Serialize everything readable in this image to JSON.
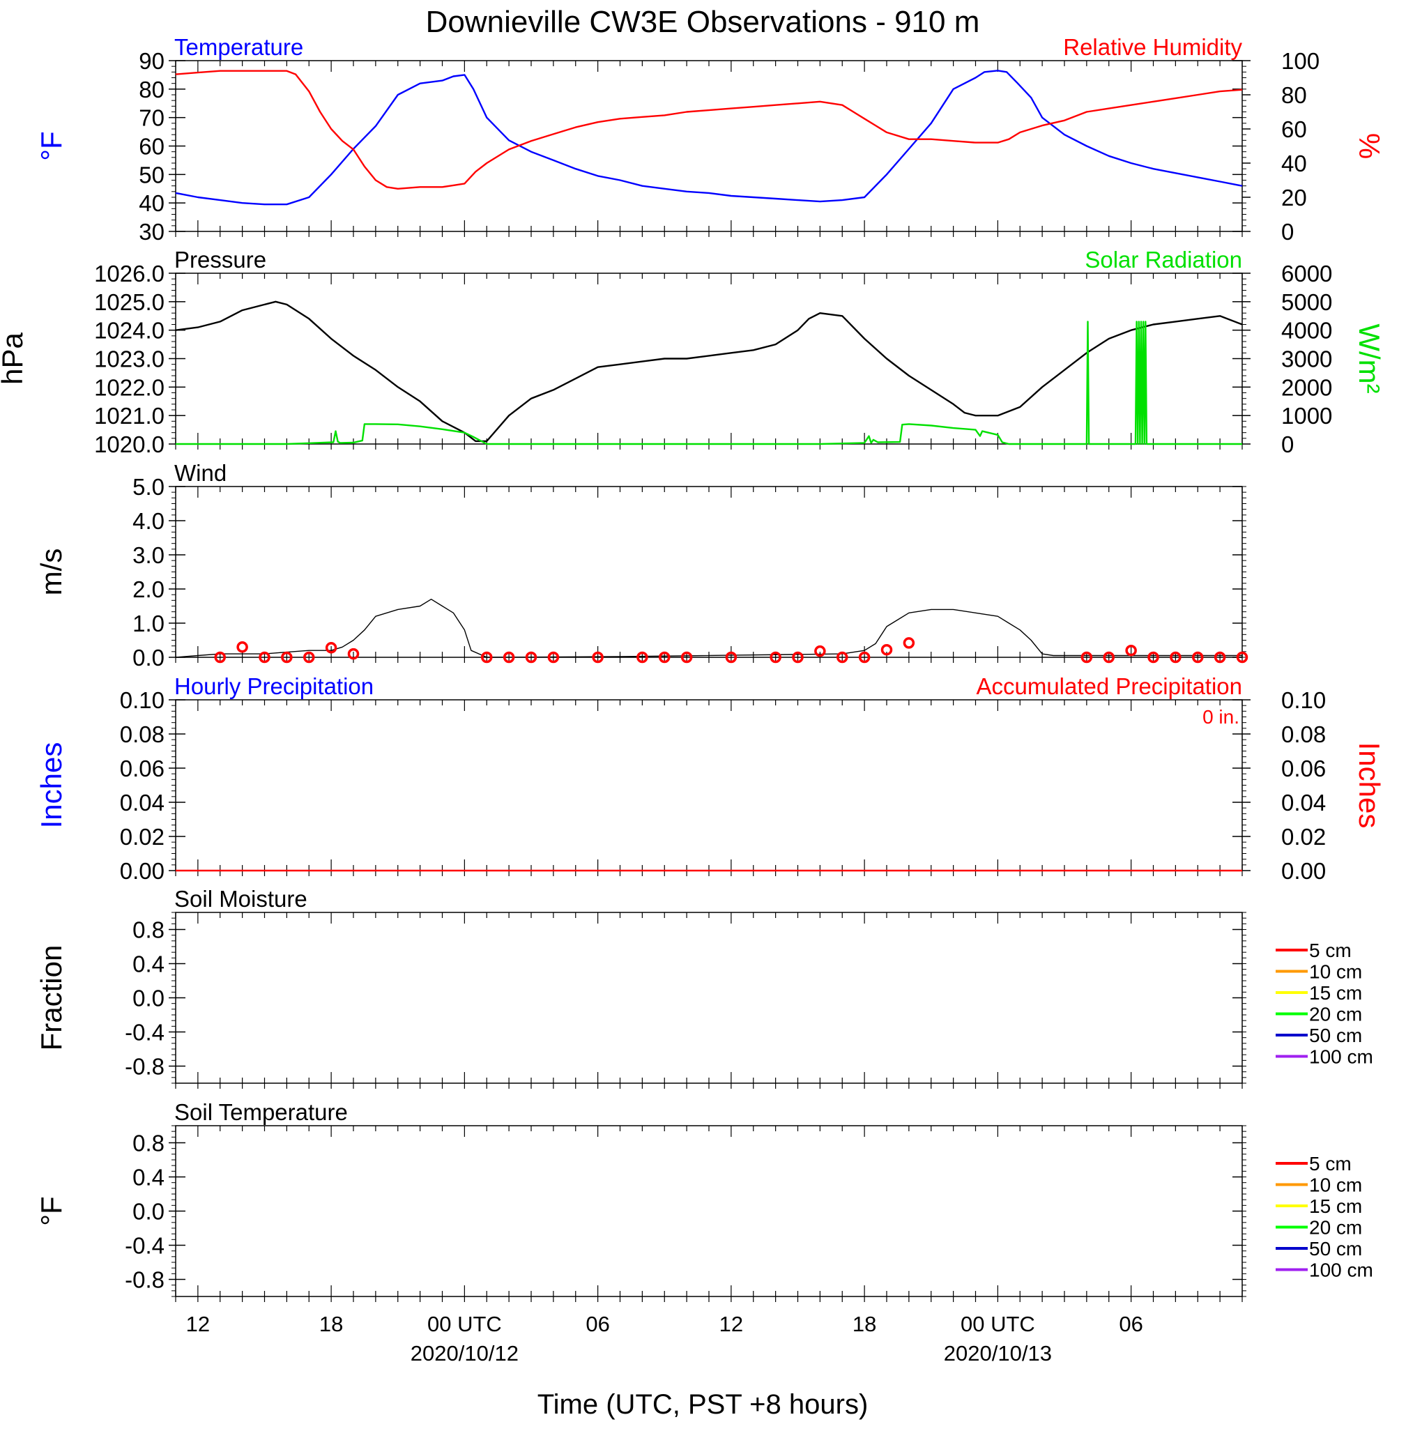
{
  "title": "Downieville CW3E Observations - 910 m",
  "xlabel": "Time (UTC, PST +8 hours)",
  "x_ticks": [
    {
      "hour": 1,
      "label": "12",
      "sub": ""
    },
    {
      "hour": 7,
      "label": "18",
      "sub": ""
    },
    {
      "hour": 13,
      "label": "00 UTC",
      "sub": "2020/10/12"
    },
    {
      "hour": 19,
      "label": "06",
      "sub": ""
    },
    {
      "hour": 25,
      "label": "12",
      "sub": ""
    },
    {
      "hour": 31,
      "label": "18",
      "sub": ""
    },
    {
      "hour": 37,
      "label": "00 UTC",
      "sub": "2020/10/13"
    },
    {
      "hour": 43,
      "label": "06",
      "sub": ""
    }
  ],
  "colors": {
    "blue": "#0000ff",
    "red": "#ff0000",
    "green": "#00e000",
    "black": "#000000",
    "orange": "#ff9900",
    "yellow": "#ffff00",
    "soilgreen": "#00ff00",
    "navy": "#0000cc",
    "purple": "#a020f0"
  },
  "chart_data": [
    {
      "type": "line",
      "panel": "temperature_humidity",
      "left_title": "Temperature",
      "right_title": "Relative Humidity",
      "ylabel_left": "°F",
      "ylabel_right": "%",
      "ylim_left": [
        30,
        90
      ],
      "yticks_left": [
        "30",
        "40",
        "50",
        "60",
        "70",
        "80",
        "90"
      ],
      "ylim_right": [
        0,
        100
      ],
      "yticks_right": [
        "0",
        "20",
        "40",
        "60",
        "80",
        "100"
      ],
      "series": [
        {
          "name": "Temperature",
          "axis": "left",
          "color": "#0000ff",
          "x": [
            0,
            1,
            2,
            3,
            4,
            5,
            6,
            7,
            8,
            9,
            10,
            11,
            12,
            12.5,
            13,
            13.4,
            14,
            15,
            16,
            17,
            18,
            19,
            20,
            21,
            22,
            23,
            24,
            25,
            26,
            27,
            28,
            29,
            30,
            31,
            32,
            33,
            34,
            35,
            36,
            36.4,
            37,
            37.4,
            37.9,
            38.5,
            39,
            40,
            41,
            42,
            43,
            44,
            45,
            46,
            47,
            48
          ],
          "y": [
            43.5,
            42,
            41,
            40,
            39.5,
            39.5,
            42,
            50,
            59,
            67,
            78,
            82,
            83,
            84.5,
            85,
            80,
            70,
            62,
            58,
            55,
            52,
            49.5,
            48,
            46,
            45,
            44,
            43.5,
            42.5,
            42,
            41.5,
            41,
            40.5,
            41,
            42,
            50,
            59,
            68,
            80,
            84,
            86,
            86.5,
            86,
            82,
            77,
            70,
            64,
            60,
            56.5,
            54,
            52,
            50.5,
            49,
            47.5,
            46
          ]
        },
        {
          "name": "Relative Humidity",
          "axis": "right",
          "color": "#ff0000",
          "x": [
            0,
            1,
            2,
            3,
            4,
            5,
            5.4,
            6,
            6.5,
            7,
            7.5,
            8,
            8.5,
            9,
            9.5,
            10,
            11,
            12,
            12.5,
            13,
            13.5,
            14,
            15,
            16,
            17,
            18,
            19,
            20,
            21,
            22,
            23,
            24,
            25,
            26,
            27,
            28,
            29,
            30,
            30.5,
            31,
            31.5,
            32,
            33,
            34,
            35,
            36,
            37,
            37.5,
            38,
            38.5,
            39,
            40,
            41,
            42,
            43,
            44,
            45,
            46,
            47,
            48
          ],
          "y": [
            92,
            93,
            94,
            94,
            94,
            94,
            92,
            82,
            70,
            60,
            53,
            48,
            38,
            30,
            26,
            25,
            26,
            26,
            27,
            28,
            35,
            40,
            48,
            53,
            57,
            61,
            64,
            66,
            67,
            68,
            70,
            71,
            72,
            73,
            74,
            75,
            76,
            74,
            70,
            66,
            62,
            58,
            54,
            54,
            53,
            52,
            52,
            54,
            58,
            60,
            62,
            65,
            70,
            72,
            74,
            76,
            78,
            80,
            82,
            83
          ]
        }
      ]
    },
    {
      "type": "line",
      "panel": "pressure_solar",
      "left_title": "Pressure",
      "right_title": "Solar Radiation",
      "ylabel_left": "hPa",
      "ylabel_right": "W/m²",
      "ylim_left": [
        1020,
        1026
      ],
      "yticks_left": [
        "1020.0",
        "1021.0",
        "1022.0",
        "1023.0",
        "1024.0",
        "1025.0",
        "1026.0"
      ],
      "ylim_right": [
        0,
        6000
      ],
      "yticks_right": [
        "0",
        "1000",
        "2000",
        "3000",
        "4000",
        "5000",
        "6000"
      ],
      "series": [
        {
          "name": "Pressure",
          "axis": "left",
          "color": "#000000",
          "x": [
            0,
            1,
            2,
            3,
            4,
            4.5,
            5,
            6,
            7,
            8,
            9,
            10,
            11,
            12,
            13,
            13.5,
            14,
            15,
            16,
            17,
            18,
            19,
            20,
            21,
            22,
            23,
            24,
            25,
            26,
            27,
            28,
            28.5,
            29,
            30,
            31,
            32,
            33,
            34,
            35,
            35.5,
            36,
            36.5,
            37,
            38,
            39,
            40,
            41,
            42,
            43,
            44,
            45,
            46,
            47,
            48
          ],
          "y": [
            1024.0,
            1024.1,
            1024.3,
            1024.7,
            1024.9,
            1025.0,
            1024.9,
            1024.4,
            1023.7,
            1023.1,
            1022.6,
            1022.0,
            1021.5,
            1020.8,
            1020.4,
            1020.1,
            1020.1,
            1021.0,
            1021.6,
            1021.9,
            1022.3,
            1022.7,
            1022.8,
            1022.9,
            1023.0,
            1023.0,
            1023.1,
            1023.2,
            1023.3,
            1023.5,
            1024.0,
            1024.4,
            1024.6,
            1024.5,
            1023.7,
            1023.0,
            1022.4,
            1021.9,
            1021.4,
            1021.1,
            1021.0,
            1021.0,
            1021.0,
            1021.3,
            1022.0,
            1022.6,
            1023.2,
            1023.7,
            1024.0,
            1024.2,
            1024.3,
            1024.4,
            1024.5,
            1024.2
          ]
        },
        {
          "name": "Solar Radiation",
          "axis": "right",
          "color": "#00e000",
          "x": [
            0,
            5,
            6,
            7.1,
            7.2,
            7.3,
            7.4,
            8,
            8.4,
            8.5,
            9,
            10,
            11,
            12,
            13,
            13.4,
            14,
            24,
            29,
            30,
            31,
            31.2,
            31.3,
            31.4,
            31.6,
            32.6,
            32.7,
            33,
            34,
            35,
            36,
            36.2,
            36.3,
            37,
            37.2,
            37.5,
            40,
            40.9,
            41,
            41.05,
            41.1,
            41.2,
            42,
            43.2,
            43.25,
            43.3,
            43.35,
            43.4,
            43.45,
            43.5,
            43.55,
            43.6,
            43.65,
            43.7,
            44,
            48
          ],
          "y": [
            0,
            0,
            30,
            60,
            450,
            80,
            40,
            50,
            120,
            700,
            700,
            690,
            620,
            520,
            400,
            250,
            0,
            0,
            0,
            20,
            40,
            280,
            40,
            150,
            60,
            70,
            680,
            700,
            650,
            560,
            500,
            280,
            450,
            320,
            60,
            0,
            0,
            0,
            0,
            4300,
            0,
            0,
            0,
            0,
            4300,
            0,
            4300,
            0,
            4300,
            0,
            4300,
            0,
            4300,
            0,
            0,
            0
          ]
        }
      ]
    },
    {
      "type": "line",
      "panel": "wind",
      "left_title": "Wind",
      "ylabel_left": "m/s",
      "ylim_left": [
        0,
        5
      ],
      "yticks_left": [
        "0.0",
        "1.0",
        "2.0",
        "3.0",
        "4.0",
        "5.0"
      ],
      "series": [
        {
          "name": "Wind",
          "axis": "left",
          "color": "#000000",
          "x": [
            0,
            1,
            2,
            3,
            4,
            5,
            6,
            7,
            7.5,
            8,
            8.5,
            9,
            10,
            11,
            11.5,
            12,
            12.5,
            13,
            13.3,
            14,
            20,
            30,
            31,
            31.5,
            32,
            32.5,
            33,
            34,
            35,
            36,
            37,
            37.5,
            38,
            38.5,
            39,
            39.5,
            40,
            48
          ],
          "y": [
            0,
            0.05,
            0.1,
            0.1,
            0.1,
            0.15,
            0.2,
            0.2,
            0.3,
            0.5,
            0.8,
            1.2,
            1.4,
            1.5,
            1.7,
            1.5,
            1.3,
            0.8,
            0.2,
            0,
            0.02,
            0.1,
            0.2,
            0.4,
            0.9,
            1.1,
            1.3,
            1.4,
            1.4,
            1.3,
            1.2,
            1.0,
            0.8,
            0.5,
            0.1,
            0.05,
            0.05,
            0.05
          ]
        },
        {
          "name": "Hourly wind markers",
          "axis": "left",
          "color": "#ff0000",
          "x": [
            2,
            3,
            4,
            5,
            6,
            7,
            8,
            14,
            15,
            16,
            17,
            19,
            21,
            22,
            23,
            25,
            27,
            28,
            29,
            30,
            31,
            32,
            33,
            41,
            42,
            43,
            44,
            45,
            46,
            47,
            48
          ],
          "y": [
            0.0,
            0.3,
            0.0,
            0.0,
            0.0,
            0.28,
            0.1,
            0.0,
            0.0,
            0.0,
            0.0,
            0.0,
            0.0,
            0.0,
            0.0,
            0.0,
            0.0,
            0.0,
            0.18,
            0.0,
            0.0,
            0.22,
            0.42,
            0.0,
            0.0,
            0.2,
            0.0,
            0.0,
            0.0,
            0.0,
            0.0
          ]
        }
      ]
    },
    {
      "type": "line",
      "panel": "precipitation",
      "left_title": "Hourly Precipitation",
      "right_title": "Accumulated Precipitation",
      "annotation": "0 in.",
      "ylabel_left": "Inches",
      "ylabel_right": "Inches",
      "ylim_left": [
        0,
        0.1
      ],
      "yticks_left": [
        "0.00",
        "0.02",
        "0.04",
        "0.06",
        "0.08",
        "0.10"
      ],
      "ylim_right": [
        0,
        0.1
      ],
      "yticks_right": [
        "0.00",
        "0.02",
        "0.04",
        "0.06",
        "0.08",
        "0.10"
      ],
      "series": [
        {
          "name": "Accumulated Precipitation",
          "axis": "right",
          "color": "#ff0000",
          "x": [
            0,
            48
          ],
          "y": [
            0,
            0
          ]
        }
      ]
    },
    {
      "type": "line",
      "panel": "soil_moisture",
      "left_title": "Soil Moisture",
      "ylabel_left": "Fraction",
      "ylim_left": [
        -1,
        1
      ],
      "yticks_left": [
        "-0.8",
        "-0.4",
        "0.0",
        "0.4",
        "0.8"
      ],
      "series": [],
      "legend": [
        "5 cm",
        "10 cm",
        "15 cm",
        "20 cm",
        "50 cm",
        "100 cm"
      ]
    },
    {
      "type": "line",
      "panel": "soil_temperature",
      "left_title": "Soil Temperature",
      "ylabel_left": "°F",
      "ylim_left": [
        -1,
        1
      ],
      "yticks_left": [
        "-0.8",
        "-0.4",
        "0.0",
        "0.4",
        "0.8"
      ],
      "series": [],
      "legend": [
        "5 cm",
        "10 cm",
        "15 cm",
        "20 cm",
        "50 cm",
        "100 cm"
      ]
    }
  ]
}
